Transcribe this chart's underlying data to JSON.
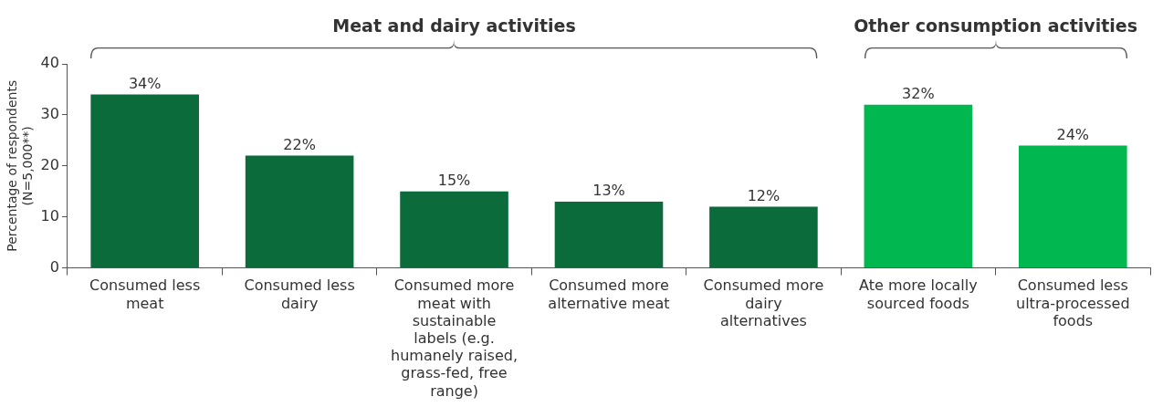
{
  "chart_data": {
    "type": "bar",
    "categories": [
      "Consumed less meat",
      "Consumed less dairy",
      "Consumed more meat with sustainable labels (e.g. humanely raised, grass-fed, free range)",
      "Consumed more alternative meat",
      "Consumed more dairy alternatives",
      "Ate more locally sourced foods",
      "Consumed less ultra-processed foods"
    ],
    "values": [
      34,
      22,
      15,
      13,
      12,
      32,
      24
    ],
    "value_labels": [
      "34%",
      "22%",
      "15%",
      "13%",
      "12%",
      "32%",
      "24%"
    ],
    "colors": [
      "#0b6b3a",
      "#0b6b3a",
      "#0b6b3a",
      "#0b6b3a",
      "#0b6b3a",
      "#00b84f",
      "#00b84f"
    ],
    "ylabel": "Percentage of respondents (N=5,000**)",
    "ylim": [
      0,
      40
    ],
    "yticks": [
      0,
      10,
      20,
      30,
      40
    ],
    "annotations": [
      "Meat and dairy activities",
      "Other consumption activities"
    ],
    "grid": false,
    "legend": false
  }
}
